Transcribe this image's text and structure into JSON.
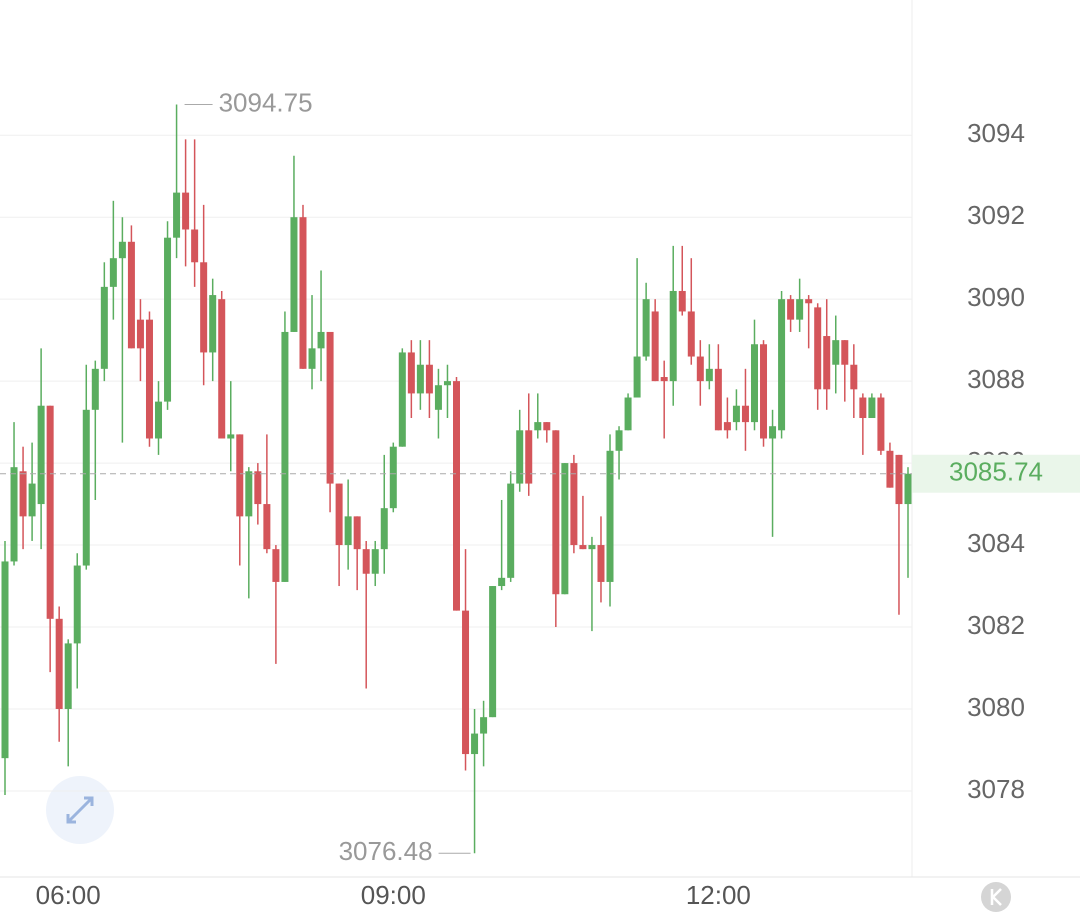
{
  "chart_data": {
    "type": "candlestick",
    "categories": [
      null,
      null,
      null,
      null,
      null,
      null,
      null,
      "06:00",
      null,
      null,
      null,
      null,
      null,
      null,
      null,
      null,
      null,
      null,
      null,
      null,
      null,
      null,
      null,
      null,
      null,
      null,
      null,
      null,
      null,
      null,
      null,
      null,
      null,
      null,
      null,
      null,
      null,
      null,
      null,
      null,
      null,
      null,
      null,
      "09:00",
      null,
      null,
      null,
      null,
      null,
      null,
      null,
      null,
      null,
      null,
      null,
      null,
      null,
      null,
      null,
      null,
      null,
      null,
      null,
      null,
      null,
      null,
      null,
      null,
      null,
      null,
      null,
      null,
      null,
      null,
      null,
      null,
      null,
      null,
      null,
      "12:00",
      null,
      null,
      null,
      null,
      null,
      null,
      null,
      null,
      null,
      null,
      null,
      null,
      null,
      null,
      null,
      null,
      null,
      null,
      null,
      null,
      null
    ],
    "open": [
      3078.8,
      3083.6,
      3085.8,
      3084.7,
      3085.0,
      3087.4,
      3082.2,
      3080.0,
      3081.6,
      3083.5,
      3087.3,
      3088.3,
      3090.3,
      3091.0,
      3091.4,
      3089.5,
      3089.5,
      3086.6,
      3087.5,
      3091.5,
      3092.6,
      3091.7,
      3090.9,
      3088.7,
      3090.0,
      3086.6,
      3086.7,
      3084.7,
      3085.8,
      3085.0,
      3083.9,
      3083.1,
      3089.2,
      3092.0,
      3088.3,
      3088.8,
      3089.2,
      3085.5,
      3084.0,
      3084.7,
      3083.9,
      3083.3,
      3083.9,
      3084.9,
      3086.4,
      3088.7,
      3087.7,
      3088.4,
      3087.3,
      3087.9,
      3088.0,
      3082.4,
      3078.9,
      3079.4,
      3079.8,
      3083.0,
      3083.2,
      3085.5,
      3086.8,
      3086.8,
      3087.0,
      3086.8,
      3082.8,
      3086.0,
      3084.0,
      3083.9,
      3084.0,
      3083.1,
      3086.3,
      3086.8,
      3087.6,
      3088.6,
      3089.7,
      3088.1,
      3088.0,
      3090.2,
      3089.7,
      3088.6,
      3088.0,
      3088.3,
      3087.0,
      3087.0,
      3087.4,
      3087.0,
      3088.9,
      3086.6,
      3086.8,
      3090.0,
      3089.5,
      3090.0,
      3089.8,
      3089.1,
      3088.4,
      3089.0,
      3088.4,
      3087.6,
      3087.1,
      3087.6,
      3086.3,
      3086.2,
      3085.0
    ],
    "close": [
      3083.6,
      3085.9,
      3084.7,
      3085.5,
      3087.4,
      3082.2,
      3080.0,
      3081.6,
      3083.5,
      3087.3,
      3088.3,
      3090.3,
      3091.0,
      3091.4,
      3088.8,
      3088.8,
      3086.6,
      3087.5,
      3091.5,
      3092.6,
      3091.7,
      3090.9,
      3088.7,
      3090.1,
      3086.6,
      3086.7,
      3084.7,
      3085.8,
      3085.0,
      3083.9,
      3083.1,
      3089.2,
      3092.0,
      3088.3,
      3088.8,
      3089.2,
      3085.5,
      3084.0,
      3084.7,
      3083.9,
      3083.3,
      3083.9,
      3084.9,
      3086.4,
      3088.7,
      3087.7,
      3088.4,
      3087.7,
      3087.9,
      3088.0,
      3082.4,
      3078.9,
      3079.4,
      3079.8,
      3083.0,
      3083.2,
      3085.5,
      3086.8,
      3085.5,
      3087.0,
      3086.8,
      3082.8,
      3086.0,
      3084.0,
      3083.9,
      3084.0,
      3083.1,
      3086.3,
      3086.8,
      3087.6,
      3088.6,
      3090.0,
      3088.0,
      3088.0,
      3090.2,
      3089.7,
      3088.6,
      3088.0,
      3088.3,
      3086.8,
      3086.8,
      3087.4,
      3087.0,
      3088.9,
      3086.6,
      3086.9,
      3090.0,
      3089.5,
      3090.0,
      3089.9,
      3087.8,
      3087.8,
      3089.0,
      3088.4,
      3087.8,
      3087.1,
      3087.6,
      3086.3,
      3085.4,
      3085.0,
      3085.74
    ],
    "high": [
      3084.1,
      3087.0,
      3086.4,
      3086.5,
      3088.8,
      3087.4,
      3082.5,
      3081.7,
      3083.8,
      3088.4,
      3088.5,
      3090.9,
      3092.4,
      3092.0,
      3091.8,
      3090.0,
      3089.7,
      3088.0,
      3091.9,
      3094.75,
      3093.9,
      3093.9,
      3092.3,
      3090.5,
      3090.2,
      3088.0,
      3086.7,
      3085.9,
      3086.0,
      3086.7,
      3084.0,
      3089.7,
      3093.5,
      3092.3,
      3090.1,
      3090.7,
      3089.2,
      3085.5,
      3085.6,
      3084.7,
      3084.1,
      3084.1,
      3086.2,
      3086.5,
      3088.8,
      3089.0,
      3089.0,
      3089.0,
      3088.3,
      3088.4,
      3088.1,
      3083.9,
      3080.0,
      3080.2,
      3083.0,
      3085.1,
      3085.8,
      3087.3,
      3087.7,
      3087.7,
      3087.0,
      3086.8,
      3086.0,
      3086.2,
      3085.2,
      3084.2,
      3084.7,
      3086.7,
      3086.9,
      3087.7,
      3091.0,
      3090.4,
      3090.0,
      3088.5,
      3091.3,
      3091.3,
      3091.0,
      3089.0,
      3088.9,
      3088.9,
      3087.6,
      3087.8,
      3088.3,
      3089.5,
      3089.0,
      3087.3,
      3090.2,
      3090.1,
      3090.5,
      3090.1,
      3089.9,
      3090.0,
      3089.6,
      3089.0,
      3088.9,
      3087.7,
      3087.7,
      3087.7,
      3086.5,
      3086.2,
      3085.9
    ],
    "low": [
      3077.9,
      3083.5,
      3083.9,
      3084.1,
      3083.9,
      3080.9,
      3079.2,
      3078.6,
      3080.5,
      3083.4,
      3085.1,
      3088.0,
      3089.5,
      3086.5,
      3088.8,
      3088.0,
      3086.4,
      3086.2,
      3087.3,
      3091.0,
      3090.8,
      3090.3,
      3087.9,
      3088.0,
      3086.6,
      3085.8,
      3083.5,
      3082.7,
      3084.5,
      3083.8,
      3081.1,
      3083.1,
      3089.2,
      3088.3,
      3087.8,
      3088.0,
      3084.8,
      3083.0,
      3083.4,
      3082.9,
      3080.5,
      3083.0,
      3083.3,
      3084.8,
      3086.4,
      3087.1,
      3087.3,
      3087.1,
      3086.6,
      3087.1,
      3082.4,
      3078.5,
      3076.48,
      3078.6,
      3079.8,
      3082.9,
      3083.1,
      3085.3,
      3085.2,
      3086.6,
      3086.5,
      3082.0,
      3082.8,
      3083.8,
      3083.9,
      3081.9,
      3082.6,
      3082.5,
      3085.6,
      3086.8,
      3087.6,
      3088.5,
      3088.0,
      3086.6,
      3087.4,
      3089.6,
      3088.4,
      3087.4,
      3087.8,
      3086.8,
      3086.6,
      3086.8,
      3086.3,
      3086.8,
      3086.4,
      3084.2,
      3086.6,
      3089.2,
      3089.2,
      3088.8,
      3087.3,
      3087.3,
      3087.7,
      3087.5,
      3087.1,
      3086.2,
      3087.1,
      3086.2,
      3085.4,
      3082.3,
      3083.2
    ],
    "up_color": "#5aad5f",
    "down_color": "#d4555a",
    "ylim": [
      3075.9,
      3097.3
    ],
    "yticks": [
      3078,
      3080,
      3082,
      3084,
      3086,
      3088,
      3090,
      3092,
      3094
    ],
    "grid": true,
    "max_label": 3094.75,
    "min_label": 3076.48,
    "last_price": 3085.74
  }
}
